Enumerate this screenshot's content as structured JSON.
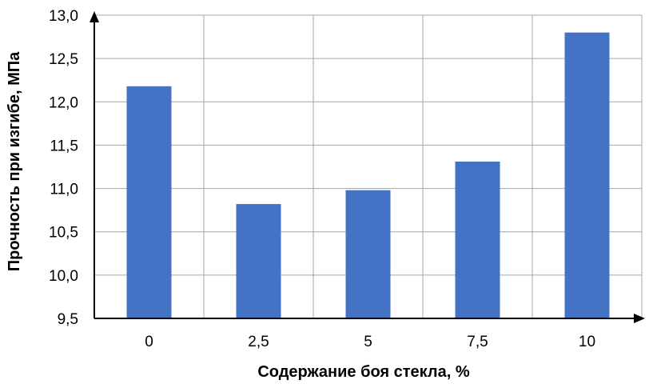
{
  "chart_data": {
    "type": "bar",
    "xlabel": "Содержание боя стекла, %",
    "ylabel": "Прочность при изгибе, МПа",
    "categories": [
      "0",
      "2,5",
      "5",
      "7,5",
      "10"
    ],
    "values": [
      12.18,
      10.82,
      10.98,
      11.31,
      12.8
    ],
    "ylim": [
      9.5,
      13.0
    ],
    "yticks": [
      "9,5",
      "10,0",
      "10,5",
      "11,0",
      "11,5",
      "12,0",
      "12,5",
      "13,0"
    ],
    "grid": true,
    "bar_color": "#4472C4"
  }
}
